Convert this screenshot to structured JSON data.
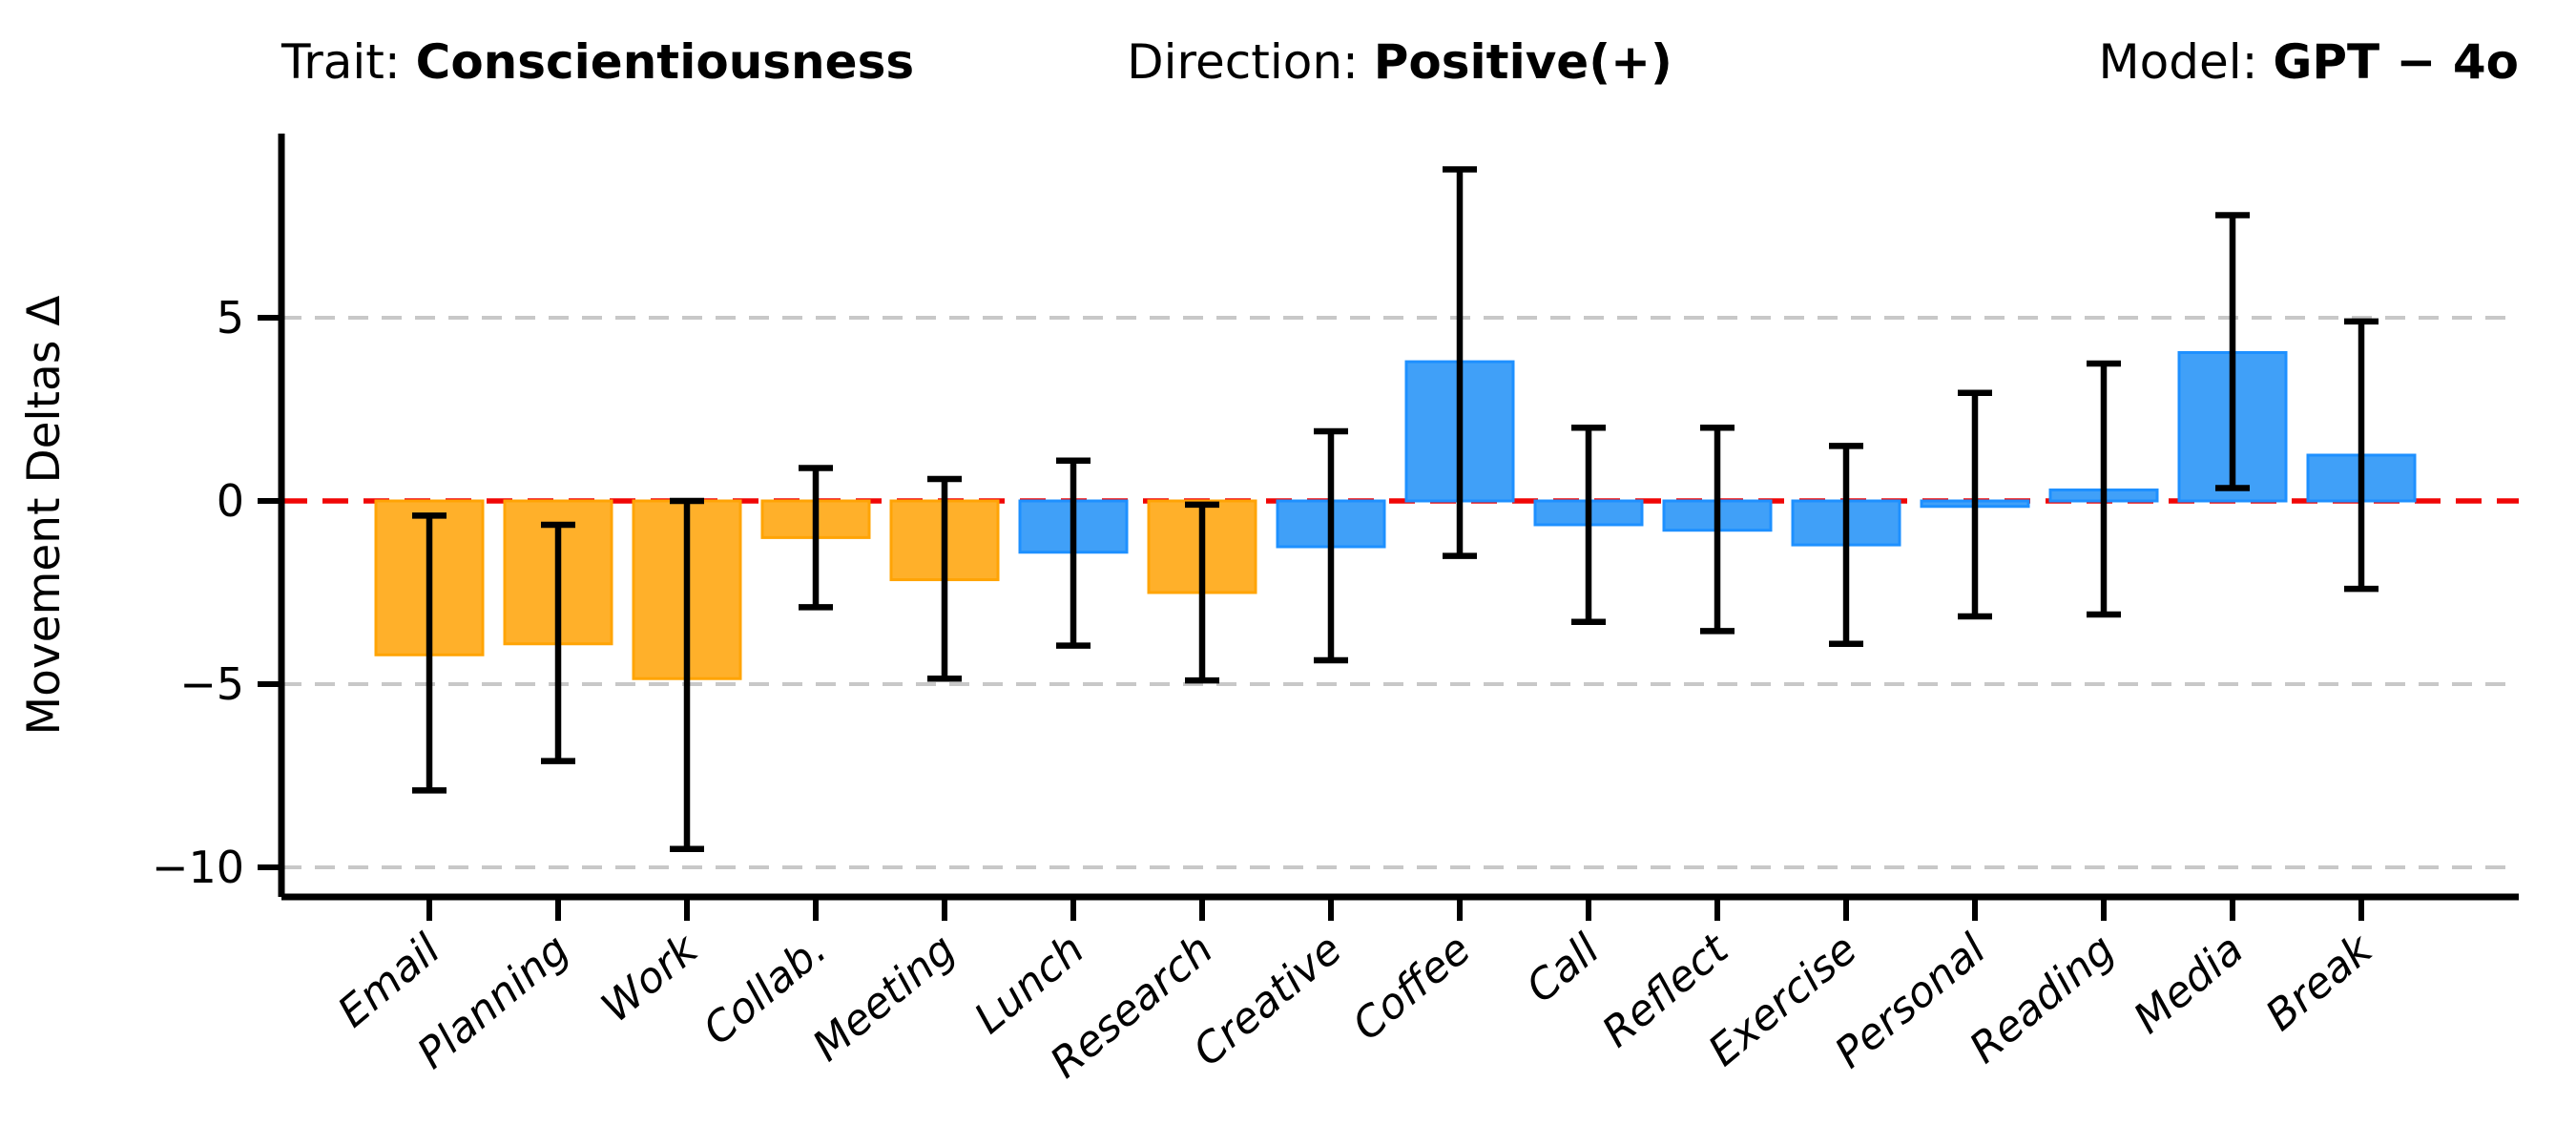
{
  "header": {
    "trait_label": "Trait: ",
    "trait_value": "Conscientiousness",
    "direction_label": "Direction: ",
    "direction_value": "Positive(+)",
    "model_label": "Model: ",
    "model_value": "GPT − 4o"
  },
  "chart_data": {
    "type": "bar",
    "title": "Trait: Conscientiousness    Direction: Positive(+)    Model: GPT − 4o",
    "ylabel": "Movement Deltas Δ",
    "xlabel": "",
    "categories": [
      "Email",
      "Planning",
      "Work",
      "Collab.",
      "Meeting",
      "Lunch",
      "Research",
      "Creative",
      "Coffee",
      "Call",
      "Reflect",
      "Exercise",
      "Personal",
      "Reading",
      "Media",
      "Break"
    ],
    "values": [
      -4.2,
      -3.9,
      -4.85,
      -1.0,
      -2.15,
      -1.4,
      -2.5,
      -1.25,
      3.8,
      -0.65,
      -0.8,
      -1.2,
      -0.15,
      0.3,
      4.05,
      1.25
    ],
    "error_high": [
      -0.4,
      -0.65,
      0.0,
      0.9,
      0.6,
      1.1,
      -0.1,
      1.9,
      9.05,
      2.0,
      2.0,
      1.5,
      2.95,
      3.75,
      7.8,
      4.9
    ],
    "error_low": [
      -7.9,
      -7.1,
      -9.5,
      -2.9,
      -4.85,
      -3.95,
      -4.9,
      -4.35,
      -1.5,
      -3.3,
      -3.55,
      -3.9,
      -3.15,
      -3.1,
      0.35,
      -2.4
    ],
    "bar_color_flags": [
      "orange",
      "orange",
      "orange",
      "orange",
      "orange",
      "blue",
      "orange",
      "blue",
      "blue",
      "blue",
      "blue",
      "blue",
      "blue",
      "blue",
      "blue",
      "blue"
    ],
    "yticks": [
      5,
      0,
      -5,
      -10
    ],
    "ytick_labels": [
      "5",
      "0",
      "−5",
      "−10"
    ],
    "ylim": [
      -10.8,
      10.0
    ],
    "grid": true,
    "legend": "none",
    "colors": {
      "bar_face_orange": "#ffb02a",
      "bar_edge_orange": "#ffa405",
      "bar_face_blue": "#40a0f8",
      "bar_edge_blue": "#1e90ff",
      "error_bar": "#000000",
      "zero_line": "#f00606",
      "gridline": "#c8c8c8",
      "axis": "#000000"
    }
  }
}
